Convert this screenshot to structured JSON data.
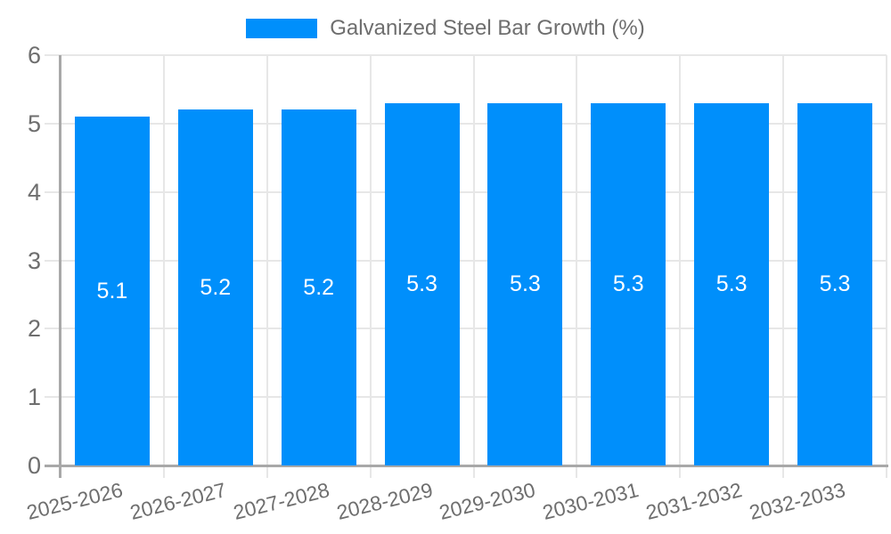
{
  "page": {
    "background": "#ffffff"
  },
  "legend": {
    "position": "top",
    "items": [
      {
        "label": "Galvanized Steel Bar Growth (%)",
        "color": "#008FFB"
      }
    ]
  },
  "colors": {
    "bar": "#008FFB",
    "bar_value_text": "#ffffff",
    "axis_text": "#6e6e6e",
    "legend_text": "#6e6e6e",
    "grid_line": "#e7e7e7",
    "axis_line": "#a8a8a8"
  },
  "chart_data": {
    "type": "bar",
    "title": "",
    "xlabel": "",
    "ylabel": "",
    "categories": [
      "2025-2026",
      "2026-2027",
      "2027-2028",
      "2028-2029",
      "2029-2030",
      "2030-2031",
      "2031-2032",
      "2032-2033"
    ],
    "series": [
      {
        "name": "Galvanized Steel Bar Growth (%)",
        "color": "#008FFB",
        "values": [
          5.1,
          5.2,
          5.2,
          5.3,
          5.3,
          5.3,
          5.3,
          5.3
        ]
      }
    ],
    "data_labels": [
      "5.1",
      "5.2",
      "5.2",
      "5.3",
      "5.3",
      "5.3",
      "5.3",
      "5.3"
    ],
    "data_label_position": "inside-center",
    "ylim": [
      0,
      6
    ],
    "yticks": [
      "0",
      "1",
      "2",
      "3",
      "4",
      "5",
      "6"
    ],
    "grid": true,
    "legend_position": "top",
    "x_tick_rotation_deg": -14
  }
}
